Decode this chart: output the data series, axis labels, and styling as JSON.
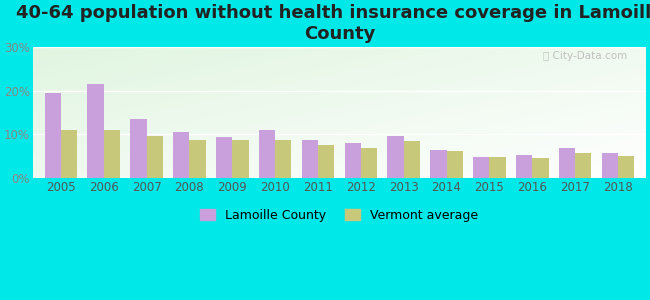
{
  "title": "40-64 population without health insurance coverage in Lamoille\nCounty",
  "years": [
    2005,
    2006,
    2007,
    2008,
    2009,
    2010,
    2011,
    2012,
    2013,
    2014,
    2015,
    2016,
    2017,
    2018
  ],
  "lamoille": [
    19.5,
    21.5,
    13.5,
    10.5,
    9.5,
    11.0,
    8.7,
    8.0,
    9.7,
    6.5,
    4.9,
    5.2,
    6.8,
    5.8
  ],
  "vermont": [
    11.0,
    11.0,
    9.7,
    8.8,
    8.7,
    8.8,
    7.5,
    7.0,
    8.5,
    6.1,
    4.8,
    4.7,
    5.8,
    5.0
  ],
  "lamoille_color": "#c9a0dc",
  "vermont_color": "#c8c87a",
  "bg_outer": "#00e8e8",
  "ylim": [
    0,
    30
  ],
  "yticks": [
    0,
    10,
    20,
    30
  ],
  "ytick_labels": [
    "0%",
    "10%",
    "20%",
    "30%"
  ],
  "bar_width": 0.38,
  "title_fontsize": 13,
  "legend_fontsize": 9,
  "tick_fontsize": 8.5
}
